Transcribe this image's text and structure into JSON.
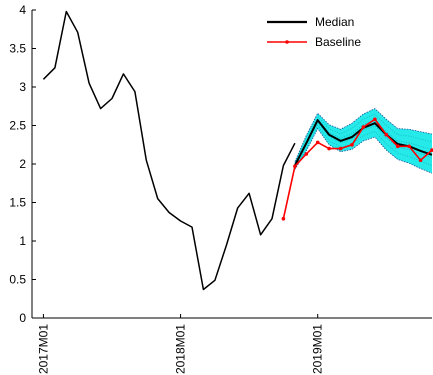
{
  "chart_data": {
    "type": "line",
    "title": "",
    "xlabel": "",
    "ylabel": "",
    "ylim": [
      0,
      4
    ],
    "y_ticks": [
      0,
      0.5,
      1,
      1.5,
      2,
      2.5,
      3,
      3.5,
      4
    ],
    "y_tick_labels": [
      "0",
      "0.5",
      "1",
      "1.5",
      "2",
      "2.5",
      "3",
      "3.5",
      "4"
    ],
    "x_range": [
      "2016M12",
      "2019M11"
    ],
    "x_ticks": [
      "2017M01",
      "2018M01",
      "2019M01"
    ],
    "x_tick_labels": [
      "2017M01",
      "2018M01",
      "2019M01"
    ],
    "history": {
      "x": [
        "2017M01",
        "2017M02",
        "2017M03",
        "2017M04",
        "2017M05",
        "2017M06",
        "2017M07",
        "2017M08",
        "2017M09",
        "2017M10",
        "2017M11",
        "2017M12",
        "2018M01",
        "2018M02",
        "2018M03",
        "2018M04",
        "2018M05",
        "2018M06",
        "2018M07",
        "2018M08",
        "2018M09",
        "2018M10",
        "2018M11"
      ],
      "values": [
        3.1,
        3.25,
        3.98,
        3.71,
        3.05,
        2.72,
        2.85,
        3.17,
        2.94,
        2.05,
        1.55,
        1.37,
        1.26,
        1.18,
        0.37,
        0.49,
        0.94,
        1.43,
        1.62,
        1.08,
        1.29,
        1.98,
        2.27
      ]
    },
    "series": [
      {
        "name": "Median",
        "color": "#000000",
        "x": [
          "2018M11",
          "2018M12",
          "2019M01",
          "2019M02",
          "2019M03",
          "2019M04",
          "2019M05",
          "2019M06",
          "2019M07",
          "2019M08",
          "2019M09",
          "2019M10",
          "2019M11"
        ],
        "values": [
          1.98,
          2.27,
          2.57,
          2.38,
          2.3,
          2.35,
          2.47,
          2.53,
          2.38,
          2.26,
          2.23,
          2.17,
          2.12
        ]
      },
      {
        "name": "Baseline",
        "color": "#ff0000",
        "marker": "dot",
        "x": [
          "2018M10",
          "2018M11",
          "2018M12",
          "2019M01",
          "2019M02",
          "2019M03",
          "2019M04",
          "2019M05",
          "2019M06",
          "2019M07",
          "2019M08",
          "2019M09",
          "2019M10",
          "2019M11"
        ],
        "values": [
          1.29,
          1.97,
          2.13,
          2.28,
          2.2,
          2.2,
          2.25,
          2.48,
          2.58,
          2.38,
          2.23,
          2.23,
          2.05,
          2.18
        ]
      }
    ],
    "band": {
      "color": "#00e5e5",
      "border_color": "#1a4f9a",
      "x": [
        "2018M11",
        "2018M12",
        "2019M01",
        "2019M02",
        "2019M03",
        "2019M04",
        "2019M05",
        "2019M06",
        "2019M07",
        "2019M08",
        "2019M09",
        "2019M10",
        "2019M11"
      ],
      "lower": [
        1.93,
        2.17,
        2.46,
        2.25,
        2.16,
        2.19,
        2.3,
        2.35,
        2.18,
        2.06,
        2.01,
        1.94,
        1.88
      ],
      "upper": [
        2.03,
        2.37,
        2.66,
        2.51,
        2.45,
        2.53,
        2.65,
        2.72,
        2.58,
        2.46,
        2.45,
        2.42,
        2.39
      ]
    },
    "legend": {
      "placement": "top-right",
      "entries": [
        "Median",
        "Baseline"
      ]
    },
    "grid": false
  }
}
